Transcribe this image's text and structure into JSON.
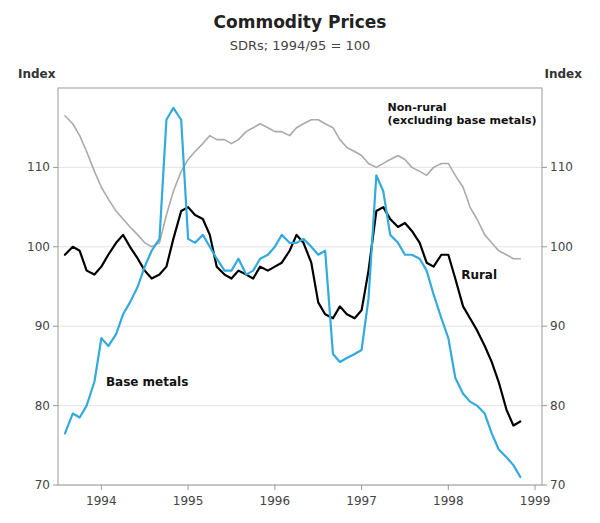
{
  "chart_data": {
    "type": "line",
    "title": "Commodity Prices",
    "subtitle": "SDRs; 1994/95 = 100",
    "ylabel": "Index",
    "y2label": "Index",
    "x": [
      1993.58,
      1993.67,
      1993.75,
      1993.83,
      1993.92,
      1994.0,
      1994.08,
      1994.17,
      1994.25,
      1994.33,
      1994.42,
      1994.5,
      1994.58,
      1994.67,
      1994.75,
      1994.83,
      1994.92,
      1995.0,
      1995.08,
      1995.17,
      1995.25,
      1995.33,
      1995.42,
      1995.5,
      1995.58,
      1995.67,
      1995.75,
      1995.83,
      1995.92,
      1996.0,
      1996.08,
      1996.17,
      1996.25,
      1996.33,
      1996.42,
      1996.5,
      1996.58,
      1996.67,
      1996.75,
      1996.83,
      1996.92,
      1997.0,
      1997.08,
      1997.17,
      1997.25,
      1997.33,
      1997.42,
      1997.5,
      1997.58,
      1997.67,
      1997.75,
      1997.83,
      1997.92,
      1998.0,
      1998.08,
      1998.17,
      1998.25,
      1998.33,
      1998.42,
      1998.5,
      1998.58,
      1998.67,
      1998.75,
      1998.83
    ],
    "xlim": [
      1993.5,
      1999.08
    ],
    "xticks": [
      1994,
      1995,
      1996,
      1997,
      1998,
      1999
    ],
    "ylim": [
      70,
      120
    ],
    "yticks": [
      70,
      80,
      90,
      100,
      110
    ],
    "y2lim": [
      70,
      120
    ],
    "y2ticks": [
      70,
      80,
      90,
      100,
      110
    ],
    "grid": true,
    "series": [
      {
        "name": "Non-rural\n(excluding base metals)",
        "color": "#aaaaaa",
        "values": [
          116.5,
          115.5,
          114.0,
          112.0,
          109.5,
          107.5,
          106.0,
          104.5,
          103.5,
          102.5,
          101.5,
          100.5,
          100.0,
          100.5,
          104.0,
          107.0,
          109.5,
          111.0,
          112.0,
          113.0,
          114.0,
          113.5,
          113.5,
          113.0,
          113.5,
          114.5,
          115.0,
          115.5,
          115.0,
          114.5,
          114.5,
          114.0,
          115.0,
          115.5,
          116.0,
          116.0,
          115.5,
          115.0,
          113.5,
          112.5,
          112.0,
          111.5,
          110.5,
          110.0,
          110.5,
          111.0,
          111.5,
          111.0,
          110.0,
          109.5,
          109.0,
          110.0,
          110.5,
          110.5,
          109.0,
          107.5,
          105.0,
          103.5,
          101.5,
          100.5,
          99.5,
          99.0,
          98.5,
          98.5
        ]
      },
      {
        "name": "Rural",
        "color": "#000000",
        "values": [
          99.0,
          100.0,
          99.5,
          97.0,
          96.5,
          97.5,
          99.0,
          100.5,
          101.5,
          100.0,
          98.5,
          97.0,
          96.0,
          96.5,
          97.5,
          101.0,
          104.5,
          105.0,
          104.0,
          103.5,
          101.5,
          97.5,
          96.5,
          96.0,
          97.0,
          96.5,
          96.0,
          97.5,
          97.0,
          97.5,
          98.0,
          99.5,
          101.5,
          100.5,
          98.0,
          93.0,
          91.5,
          91.0,
          92.5,
          91.5,
          91.0,
          92.0,
          97.0,
          104.5,
          105.0,
          103.5,
          102.5,
          103.0,
          102.0,
          100.5,
          98.0,
          97.5,
          99.0,
          99.0,
          96.0,
          92.5,
          91.0,
          89.5,
          87.5,
          85.5,
          83.0,
          79.5,
          77.5,
          78.0
        ]
      },
      {
        "name": "Base metals",
        "color": "#33aadd",
        "values": [
          76.5,
          79.0,
          78.5,
          80.0,
          83.0,
          88.5,
          87.5,
          89.0,
          91.5,
          93.0,
          95.0,
          97.5,
          99.5,
          101.0,
          116.0,
          117.5,
          116.0,
          101.0,
          100.5,
          101.5,
          100.0,
          98.5,
          97.0,
          97.0,
          98.5,
          96.5,
          97.0,
          98.5,
          99.0,
          100.0,
          101.5,
          100.5,
          100.5,
          101.0,
          100.0,
          99.0,
          99.5,
          86.5,
          85.5,
          86.0,
          86.5,
          87.0,
          93.5,
          109.0,
          107.0,
          101.5,
          100.5,
          99.0,
          99.0,
          98.5,
          97.0,
          94.0,
          91.0,
          88.5,
          83.5,
          81.5,
          80.5,
          80.0,
          79.0,
          76.5,
          74.5,
          73.5,
          72.5,
          71.0
        ]
      }
    ]
  }
}
